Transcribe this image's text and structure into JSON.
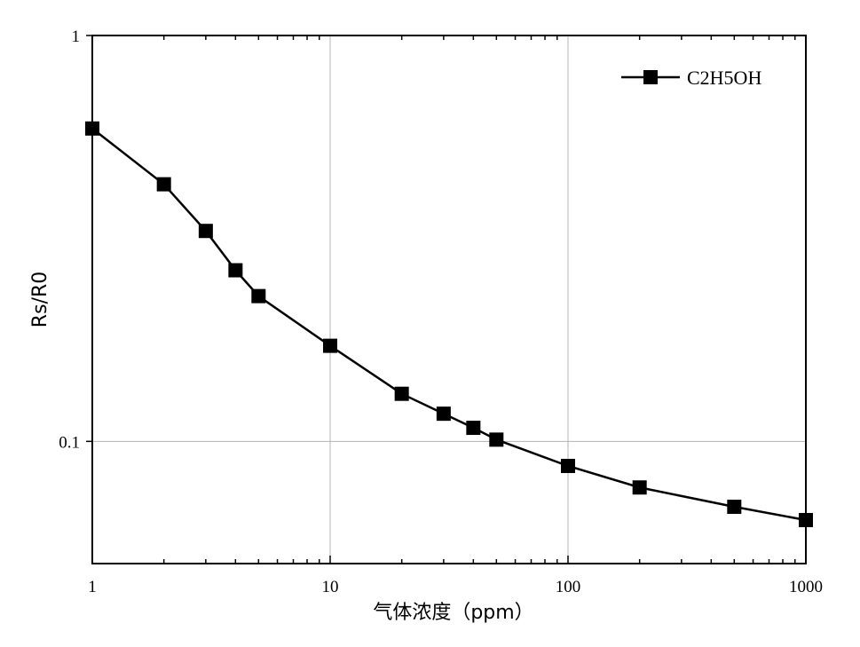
{
  "chart_data": {
    "type": "line",
    "xlabel": "气体浓度（ppm）",
    "ylabel": "Rs/R0",
    "x_scale": "log",
    "y_scale": "log",
    "xlim": [
      1,
      1000
    ],
    "ylim": [
      0.05,
      1
    ],
    "x_ticks": [
      1,
      10,
      100,
      1000
    ],
    "x_tick_labels": [
      "1",
      "10",
      "100",
      "1000"
    ],
    "y_ticks": [
      0.1,
      1
    ],
    "y_tick_labels": [
      "0.1",
      "1"
    ],
    "grid": true,
    "legend": {
      "position": "top-right"
    },
    "series": [
      {
        "name": "C2H5OH",
        "marker": "square",
        "color": "#000000",
        "x": [
          1,
          2,
          3,
          4,
          5,
          10,
          20,
          30,
          40,
          50,
          100,
          200,
          500,
          1000
        ],
        "y": [
          0.59,
          0.43,
          0.33,
          0.264,
          0.228,
          0.172,
          0.131,
          0.117,
          0.108,
          0.101,
          0.087,
          0.077,
          0.069,
          0.064
        ]
      }
    ]
  }
}
